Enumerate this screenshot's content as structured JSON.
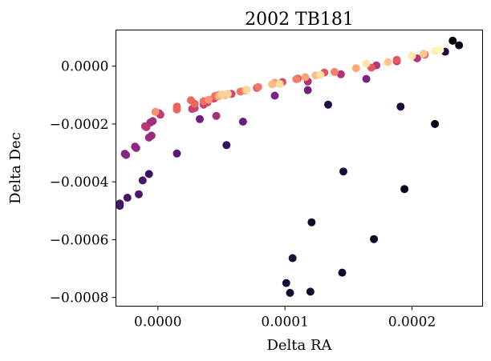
{
  "chart_data": {
    "type": "scatter",
    "title": "2002 TB181",
    "xlabel": "Delta RA",
    "ylabel": "Delta Dec",
    "xlim": [
      -3.3e-05,
      0.0002555
    ],
    "ylim": [
      -0.00083,
      0.000125
    ],
    "x_ticks": [
      0.0,
      0.0001,
      0.0002
    ],
    "x_tick_labels": [
      "0.0000",
      "0.0001",
      "0.0002"
    ],
    "y_ticks": [
      0.0,
      -0.0002,
      -0.0004,
      -0.0006,
      -0.0008
    ],
    "y_tick_labels": [
      "0.0000",
      "−0.0002",
      "−0.0004",
      "−0.0006",
      "−0.0008"
    ],
    "grid": false,
    "colormap": "magma",
    "colormap_stops": [
      "#000004",
      "#2c105c",
      "#711f81",
      "#b63679",
      "#ee605e",
      "#fdae78",
      "#fcfdbf"
    ],
    "points": [
      {
        "x": 0.000232,
        "y": 8.8e-05,
        "c": 0.0
      },
      {
        "x": 0.000218,
        "y": -0.0002,
        "c": 0.03
      },
      {
        "x": 0.000237,
        "y": 7.2e-05,
        "c": 0.04
      },
      {
        "x": 0.000194,
        "y": -0.000425,
        "c": 0.05
      },
      {
        "x": 0.00017,
        "y": -0.000598,
        "c": 0.06
      },
      {
        "x": 0.000121,
        "y": -0.00054,
        "c": 0.07
      },
      {
        "x": 0.000145,
        "y": -0.000714,
        "c": 0.07
      },
      {
        "x": 0.00012,
        "y": -0.00078,
        "c": 0.08
      },
      {
        "x": 0.000104,
        "y": -0.000784,
        "c": 0.09
      },
      {
        "x": 0.000101,
        "y": -0.00075,
        "c": 0.09
      },
      {
        "x": 0.000106,
        "y": -0.000664,
        "c": 0.1
      },
      {
        "x": 0.000146,
        "y": -0.000364,
        "c": 0.11
      },
      {
        "x": 0.000191,
        "y": -0.00014,
        "c": 0.11
      },
      {
        "x": 0.000134,
        "y": -0.000133,
        "c": 0.13
      },
      {
        "x": 0.000226,
        "y": 5e-05,
        "c": 0.13
      },
      {
        "x": 5.4e-05,
        "y": -0.000273,
        "c": 0.18
      },
      {
        "x": -7e-06,
        "y": -0.000373,
        "c": 0.19
      },
      {
        "x": -3e-05,
        "y": -0.000483,
        "c": 0.22
      },
      {
        "x": -3e-05,
        "y": -0.000475,
        "c": 0.22
      },
      {
        "x": -2.4e-05,
        "y": -0.000455,
        "c": 0.23
      },
      {
        "x": -1.5e-05,
        "y": -0.000443,
        "c": 0.24
      },
      {
        "x": -1.2e-05,
        "y": -0.000395,
        "c": 0.24
      },
      {
        "x": 1.5e-05,
        "y": -0.000302,
        "c": 0.27
      },
      {
        "x": 6.7e-05,
        "y": -0.000192,
        "c": 0.31
      },
      {
        "x": 3.3e-05,
        "y": -0.000183,
        "c": 0.33
      },
      {
        "x": 0.000118,
        "y": -8.3e-05,
        "c": 0.34
      },
      {
        "x": 9.2e-05,
        "y": -0.000102,
        "c": 0.36
      },
      {
        "x": 0.000164,
        "y": -4.4e-05,
        "c": 0.36
      },
      {
        "x": -2.5e-05,
        "y": -0.000307,
        "c": 0.38
      },
      {
        "x": -2.6e-05,
        "y": -0.000303,
        "c": 0.38
      },
      {
        "x": -1.8e-05,
        "y": -0.000278,
        "c": 0.4
      },
      {
        "x": -1.7e-05,
        "y": -0.000283,
        "c": 0.4
      },
      {
        "x": -7e-06,
        "y": -0.000247,
        "c": 0.43
      },
      {
        "x": -5e-06,
        "y": -0.00024,
        "c": 0.43
      },
      {
        "x": -6e-06,
        "y": -0.000195,
        "c": 0.45
      },
      {
        "x": -4e-06,
        "y": -0.00019,
        "c": 0.45
      },
      {
        "x": 4.6e-05,
        "y": -0.000172,
        "c": 0.46
      },
      {
        "x": 0.000118,
        "y": -5.3e-05,
        "c": 0.47
      },
      {
        "x": 0.000144,
        "y": -2.8e-05,
        "c": 0.48
      },
      {
        "x": 0.000172,
        "y": 3e-06,
        "c": 0.49
      },
      {
        "x": 0.000188,
        "y": 1.7e-05,
        "c": 0.5
      },
      {
        "x": 0.000204,
        "y": 2.7e-05,
        "c": 0.5
      },
      {
        "x": -9e-06,
        "y": -0.000211,
        "c": 0.51
      },
      {
        "x": -1e-05,
        "y": -0.000208,
        "c": 0.51
      },
      {
        "x": 2e-06,
        "y": -0.000168,
        "c": 0.53
      },
      {
        "x": 1e-06,
        "y": -0.000163,
        "c": 0.53
      },
      {
        "x": 2.7e-05,
        "y": -0.000148,
        "c": 0.54
      },
      {
        "x": 2.9e-05,
        "y": -0.000145,
        "c": 0.55
      },
      {
        "x": 3.6e-05,
        "y": -0.000133,
        "c": 0.55
      },
      {
        "x": 3.9e-05,
        "y": -0.000125,
        "c": 0.56
      },
      {
        "x": 4.4e-05,
        "y": -0.000112,
        "c": 0.57
      },
      {
        "x": 4.6e-05,
        "y": -0.000106,
        "c": 0.57
      },
      {
        "x": 5.8e-05,
        "y": -9.6e-05,
        "c": 0.58
      },
      {
        "x": 7.8e-05,
        "y": -7.5e-05,
        "c": 0.59
      },
      {
        "x": 9.8e-05,
        "y": -5.5e-05,
        "c": 0.6
      },
      {
        "x": 0.00011,
        "y": -4.3e-05,
        "c": 0.61
      },
      {
        "x": 0.000131,
        "y": -2.2e-05,
        "c": 0.62
      },
      {
        "x": 0.000168,
        "y": -5e-06,
        "c": 0.63
      },
      {
        "x": 0.000188,
        "y": 2.2e-05,
        "c": 0.64
      },
      {
        "x": 0.00021,
        "y": 4e-05,
        "c": 0.65
      },
      {
        "x": 1.5e-05,
        "y": -0.00014,
        "c": 0.66
      },
      {
        "x": 1.5e-05,
        "y": -0.00015,
        "c": 0.67
      },
      {
        "x": 2.6e-05,
        "y": -0.000118,
        "c": 0.68
      },
      {
        "x": 2.9e-05,
        "y": -0.00013,
        "c": 0.68
      },
      {
        "x": 3.6e-05,
        "y": -0.000121,
        "c": 0.69
      },
      {
        "x": 4.5e-05,
        "y": -0.000103,
        "c": 0.7
      },
      {
        "x": 4.8e-05,
        "y": -0.0001,
        "c": 0.7
      },
      {
        "x": 6.5e-05,
        "y": -8.8e-05,
        "c": 0.71
      },
      {
        "x": 7.9e-05,
        "y": -7.2e-05,
        "c": 0.72
      },
      {
        "x": 0.000109,
        "y": -4.5e-05,
        "c": 0.73
      },
      {
        "x": 0.000139,
        "y": -2e-05,
        "c": 0.74
      },
      {
        "x": -2e-06,
        "y": -0.000158,
        "c": 0.77
      },
      {
        "x": 4e-05,
        "y": -0.000116,
        "c": 0.78
      },
      {
        "x": 6.9e-05,
        "y": -8.4e-05,
        "c": 0.79
      },
      {
        "x": 9.2e-05,
        "y": -5.7e-05,
        "c": 0.8
      },
      {
        "x": 0.000116,
        "y": -3.8e-05,
        "c": 0.81
      },
      {
        "x": 0.000156,
        "y": -7e-06,
        "c": 0.82
      },
      {
        "x": 4.8e-05,
        "y": -0.000104,
        "c": 0.84
      },
      {
        "x": 5.3e-05,
        "y": -0.000101,
        "c": 0.85
      },
      {
        "x": 9e-05,
        "y": -6.3e-05,
        "c": 0.86
      },
      {
        "x": 0.000124,
        "y": -3.2e-05,
        "c": 0.87
      },
      {
        "x": 0.000181,
        "y": 1.4e-05,
        "c": 0.88
      },
      {
        "x": 0.000209,
        "y": 4.3e-05,
        "c": 0.89
      },
      {
        "x": 5e-05,
        "y": -9.8e-05,
        "c": 0.9
      },
      {
        "x": 5.5e-05,
        "y": -9.6e-05,
        "c": 0.91
      },
      {
        "x": 7e-05,
        "y": -8.2e-05,
        "c": 0.92
      },
      {
        "x": 9.6e-05,
        "y": -6.2e-05,
        "c": 0.93
      },
      {
        "x": 0.000128,
        "y": -3e-05,
        "c": 0.94
      },
      {
        "x": 0.000164,
        "y": 9e-06,
        "c": 0.95
      },
      {
        "x": 0.0002,
        "y": 3.6e-05,
        "c": 0.96
      },
      {
        "x": 0.000218,
        "y": 5.2e-05,
        "c": 0.97
      },
      {
        "x": 0.000222,
        "y": 5.6e-05,
        "c": 0.99
      }
    ]
  }
}
